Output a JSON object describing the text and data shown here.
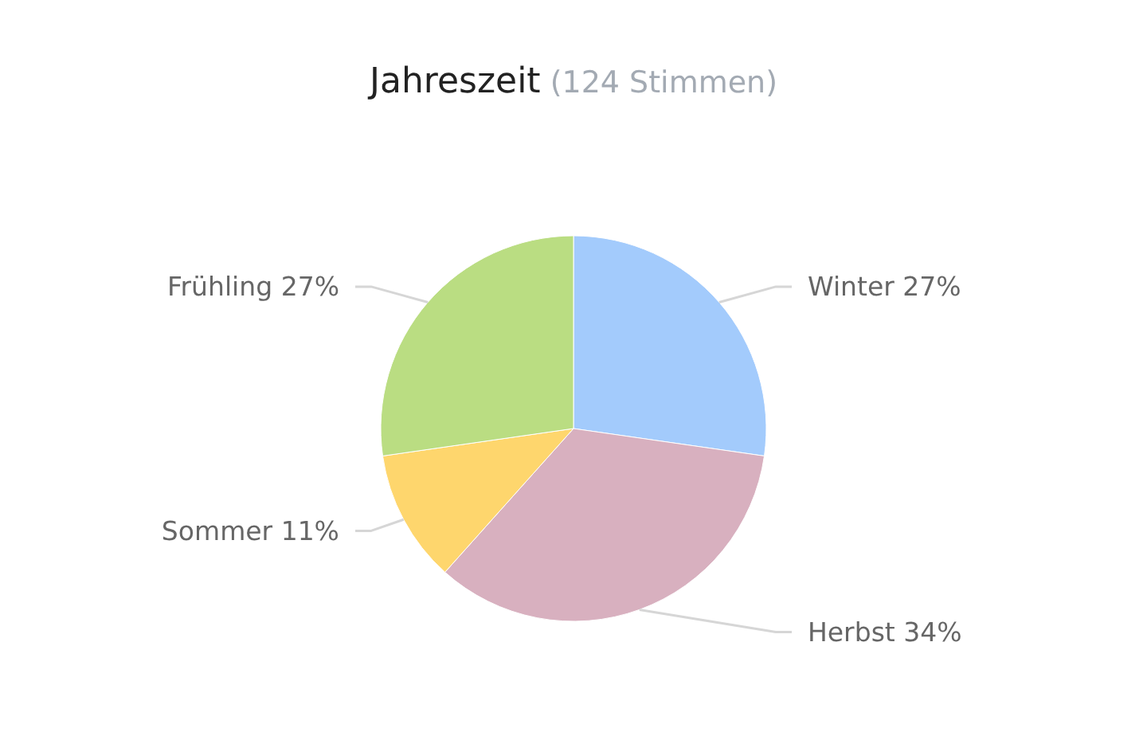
{
  "chart_data": {
    "type": "pie",
    "title": "Jahreszeit",
    "subtitle": "(124 Stimmen)",
    "categories": [
      "Winter",
      "Herbst",
      "Sommer",
      "Frühling"
    ],
    "values": [
      27,
      34,
      11,
      27
    ],
    "value_labels": [
      "27%",
      "34%",
      "11%",
      "27%"
    ],
    "colors": [
      "#a3cbfc",
      "#d8b0bf",
      "#fed66d",
      "#badd82"
    ]
  }
}
